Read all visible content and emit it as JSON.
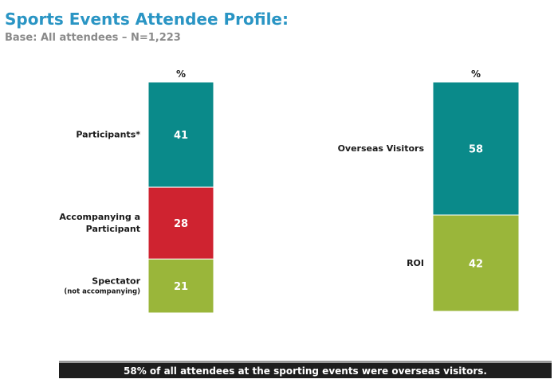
{
  "title": "Sports Events Attendee Profile:",
  "subtitle": "Base:  All attendees – N=1,223",
  "callout": "58% of all attendees at the sporting events were overseas visitors.",
  "chart_data": [
    {
      "type": "bar",
      "stacked": true,
      "unit_label": "%",
      "segments": [
        {
          "label": [
            "Participants*"
          ],
          "note": "",
          "value": 41,
          "color": "#0a8a8a"
        },
        {
          "label": [
            "Accompanying a",
            "Participant"
          ],
          "note": "",
          "value": 28,
          "color": "#cf2330"
        },
        {
          "label": [
            "Spectator"
          ],
          "note": "(not accompanying)",
          "value": 21,
          "color": "#9ab63a"
        }
      ]
    },
    {
      "type": "bar",
      "stacked": true,
      "unit_label": "%",
      "segments": [
        {
          "label": [
            "Overseas Visitors"
          ],
          "note": "",
          "value": 58,
          "color": "#0a8a8a"
        },
        {
          "label": [
            "ROI"
          ],
          "note": "",
          "value": 42,
          "color": "#9ab63a"
        }
      ]
    }
  ]
}
